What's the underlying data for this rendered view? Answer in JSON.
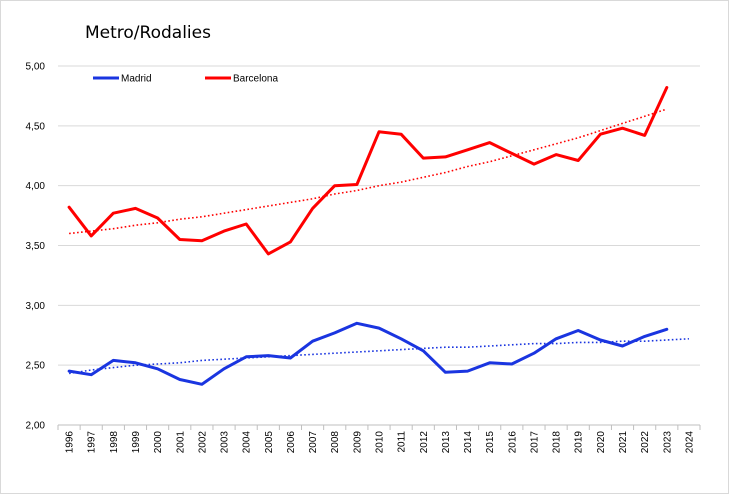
{
  "chart_data": {
    "type": "line",
    "title": "Metro/Rodalies",
    "xlabel": "",
    "ylabel": "",
    "ylim": [
      2.0,
      5.0
    ],
    "ytick_labels": [
      "2,00",
      "2,50",
      "3,00",
      "3,50",
      "4,00",
      "4,50",
      "5,00"
    ],
    "grid": true,
    "legend_position": "top-left",
    "categories": [
      "1996",
      "1997",
      "1998",
      "1999",
      "2000",
      "2001",
      "2002",
      "2003",
      "2004",
      "2005",
      "2006",
      "2007",
      "2008",
      "2009",
      "2010",
      "2011",
      "2012",
      "2013",
      "2014",
      "2015",
      "2016",
      "2017",
      "2018",
      "2019",
      "2020",
      "2021",
      "2022",
      "2023",
      "2024"
    ],
    "series": [
      {
        "name": "Madrid",
        "color": "#1a35e0",
        "values": [
          2.45,
          2.42,
          2.54,
          2.52,
          2.47,
          2.38,
          2.34,
          2.47,
          2.57,
          2.58,
          2.56,
          2.7,
          2.77,
          2.85,
          2.81,
          2.72,
          2.62,
          2.44,
          2.45,
          2.52,
          2.51,
          2.6,
          2.72,
          2.79,
          2.71,
          2.66,
          2.74,
          2.8,
          null
        ],
        "trend": [
          2.43,
          2.46,
          2.48,
          2.5,
          2.51,
          2.52,
          2.54,
          2.55,
          2.56,
          2.57,
          2.58,
          2.59,
          2.6,
          2.61,
          2.62,
          2.63,
          2.64,
          2.65,
          2.65,
          2.66,
          2.67,
          2.68,
          2.68,
          2.69,
          2.69,
          2.7,
          2.7,
          2.71,
          2.72
        ]
      },
      {
        "name": "Barcelona",
        "color": "#ff0000",
        "values": [
          3.82,
          3.58,
          3.77,
          3.81,
          3.73,
          3.55,
          3.54,
          3.62,
          3.68,
          3.43,
          3.53,
          3.81,
          4.0,
          4.01,
          4.45,
          4.43,
          4.23,
          4.24,
          4.3,
          4.36,
          4.27,
          4.18,
          4.26,
          4.21,
          4.43,
          4.48,
          4.42,
          4.82,
          null
        ],
        "trend": [
          3.6,
          3.62,
          3.64,
          3.67,
          3.69,
          3.72,
          3.74,
          3.77,
          3.8,
          3.83,
          3.86,
          3.89,
          3.93,
          3.96,
          4.0,
          4.03,
          4.07,
          4.11,
          4.16,
          4.2,
          4.25,
          4.3,
          4.35,
          4.4,
          4.46,
          4.52,
          4.58,
          4.64,
          null
        ]
      }
    ]
  }
}
